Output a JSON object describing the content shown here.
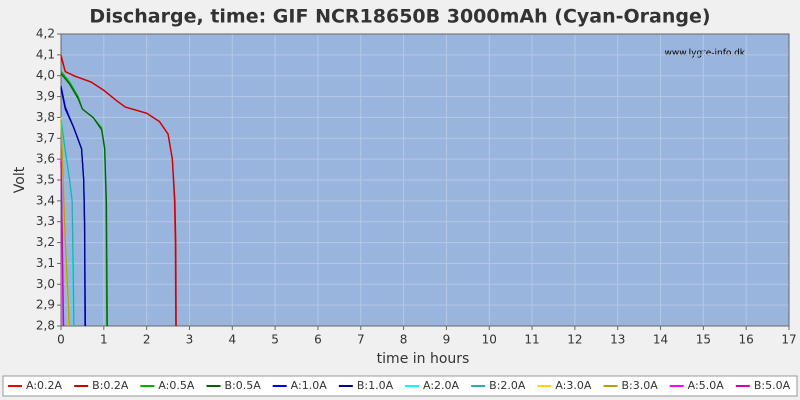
{
  "chart_data": {
    "type": "line",
    "title": "Discharge, time: GIF NCR18650B 3000mAh (Cyan-Orange)",
    "xlabel": "time in hours",
    "ylabel": "Volt",
    "annotation": "www.lygte-info.dk",
    "xlim": [
      0,
      17
    ],
    "xticks": [
      0,
      1,
      2,
      3,
      4,
      5,
      6,
      7,
      8,
      9,
      10,
      11,
      12,
      13,
      14,
      15,
      16,
      17
    ],
    "ylim": [
      2.8,
      4.2
    ],
    "yticks": [
      {
        "value": 2.8,
        "label": "2,8"
      },
      {
        "value": 2.9,
        "label": "2,9"
      },
      {
        "value": 3.0,
        "label": "3,0"
      },
      {
        "value": 3.1,
        "label": "3,1"
      },
      {
        "value": 3.2,
        "label": "3,2"
      },
      {
        "value": 3.3,
        "label": "3,3"
      },
      {
        "value": 3.4,
        "label": "3,4"
      },
      {
        "value": 3.5,
        "label": "3,5"
      },
      {
        "value": 3.6,
        "label": "3,6"
      },
      {
        "value": 3.7,
        "label": "3,7"
      },
      {
        "value": 3.8,
        "label": "3,8"
      },
      {
        "value": 3.9,
        "label": "3,9"
      },
      {
        "value": 4.0,
        "label": "4,0"
      },
      {
        "value": 4.1,
        "label": "4,1"
      },
      {
        "value": 4.2,
        "label": "4,2"
      }
    ],
    "grid": true,
    "series": [
      {
        "name": "A:0.2A",
        "color": "#ff0000",
        "x": [
          0,
          0.1,
          0.3,
          0.7,
          1.0,
          1.3,
          1.5,
          2.0,
          2.3,
          2.5,
          2.6,
          2.65,
          2.67,
          2.68
        ],
        "values": [
          4.1,
          4.02,
          4.0,
          3.97,
          3.93,
          3.88,
          3.85,
          3.82,
          3.78,
          3.72,
          3.6,
          3.4,
          3.2,
          2.8
        ]
      },
      {
        "name": "B:0.2A",
        "color": "#cc0000",
        "x": [
          0,
          0.1,
          0.3,
          0.7,
          1.0,
          1.3,
          1.5,
          2.0,
          2.3,
          2.5,
          2.6,
          2.66,
          2.68,
          2.69
        ],
        "values": [
          4.09,
          4.02,
          4.0,
          3.97,
          3.93,
          3.88,
          3.85,
          3.82,
          3.78,
          3.72,
          3.6,
          3.4,
          3.2,
          2.8
        ]
      },
      {
        "name": "A:0.5A",
        "color": "#00b000",
        "x": [
          0,
          0.2,
          0.4,
          0.5,
          0.75,
          0.95,
          1.02,
          1.05,
          1.07
        ],
        "values": [
          4.02,
          3.97,
          3.9,
          3.84,
          3.8,
          3.75,
          3.65,
          3.4,
          2.8
        ]
      },
      {
        "name": "B:0.5A",
        "color": "#006400",
        "x": [
          0,
          0.2,
          0.4,
          0.5,
          0.75,
          0.95,
          1.02,
          1.06,
          1.08
        ],
        "values": [
          4.01,
          3.96,
          3.89,
          3.84,
          3.8,
          3.74,
          3.65,
          3.4,
          2.8
        ]
      },
      {
        "name": "A:1.0A",
        "color": "#0000ff",
        "x": [
          0,
          0.1,
          0.3,
          0.48,
          0.53,
          0.55,
          0.56
        ],
        "values": [
          3.95,
          3.85,
          3.75,
          3.65,
          3.5,
          3.3,
          2.8
        ]
      },
      {
        "name": "B:1.0A",
        "color": "#00008b",
        "x": [
          0,
          0.1,
          0.3,
          0.48,
          0.53,
          0.55,
          0.57
        ],
        "values": [
          3.94,
          3.84,
          3.75,
          3.65,
          3.5,
          3.3,
          2.8
        ]
      },
      {
        "name": "A:2.0A",
        "color": "#00ffff",
        "x": [
          0,
          0.1,
          0.2,
          0.25,
          0.28,
          0.29
        ],
        "values": [
          3.8,
          3.65,
          3.5,
          3.4,
          3.0,
          2.8
        ]
      },
      {
        "name": "B:2.0A",
        "color": "#20b2aa",
        "x": [
          0,
          0.1,
          0.2,
          0.26,
          0.29,
          0.3
        ],
        "values": [
          3.79,
          3.64,
          3.5,
          3.4,
          3.0,
          2.8
        ]
      },
      {
        "name": "A:3.0A",
        "color": "#ffd700",
        "x": [
          0,
          0.05,
          0.1,
          0.15,
          0.18
        ],
        "values": [
          3.8,
          3.5,
          3.2,
          2.95,
          2.8
        ]
      },
      {
        "name": "B:3.0A",
        "color": "#b8a000",
        "x": [
          0,
          0.05,
          0.1,
          0.16,
          0.19
        ],
        "values": [
          3.79,
          3.5,
          3.2,
          2.95,
          2.8
        ]
      },
      {
        "name": "A:5.0A",
        "color": "#ff00ff",
        "x": [
          0,
          0.03,
          0.05
        ],
        "values": [
          3.6,
          3.2,
          2.8
        ]
      },
      {
        "name": "B:5.0A",
        "color": "#cc00cc",
        "x": [
          0,
          0.03,
          0.06
        ],
        "values": [
          3.59,
          3.2,
          2.8
        ]
      }
    ]
  }
}
